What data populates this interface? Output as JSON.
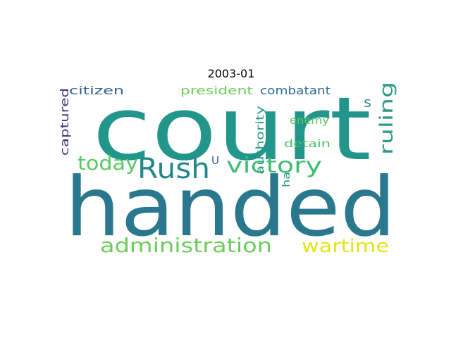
{
  "chart_data": {
    "type": "wordcloud",
    "title": "2003-01",
    "words": [
      {
        "text": "court",
        "weight": 100,
        "color": "#22968b",
        "orientation": "horizontal"
      },
      {
        "text": "handed",
        "weight": 95,
        "color": "#2a788e",
        "orientation": "horizontal"
      },
      {
        "text": "Rush",
        "weight": 40,
        "color": "#23868d",
        "orientation": "horizontal"
      },
      {
        "text": "victory",
        "weight": 30,
        "color": "#3fbc73",
        "orientation": "horizontal"
      },
      {
        "text": "today",
        "weight": 28,
        "color": "#5ac864",
        "orientation": "horizontal"
      },
      {
        "text": "administration",
        "weight": 28,
        "color": "#6ccd5a",
        "orientation": "horizontal"
      },
      {
        "text": "wartime",
        "weight": 26,
        "color": "#e2e418",
        "orientation": "horizontal"
      },
      {
        "text": "ruling",
        "weight": 25,
        "color": "#2c9a86",
        "orientation": "vertical"
      },
      {
        "text": "captured",
        "weight": 16,
        "color": "#453781",
        "orientation": "vertical"
      },
      {
        "text": "citizen",
        "weight": 16,
        "color": "#33638d",
        "orientation": "horizontal"
      },
      {
        "text": "president",
        "weight": 16,
        "color": "#6ccd5a",
        "orientation": "horizontal"
      },
      {
        "text": "combatant",
        "weight": 16,
        "color": "#2f6c8e",
        "orientation": "horizontal"
      },
      {
        "text": "authority",
        "weight": 14,
        "color": "#2a9a87",
        "orientation": "vertical"
      },
      {
        "text": "enemy",
        "weight": 14,
        "color": "#5ac864",
        "orientation": "horizontal"
      },
      {
        "text": "detain",
        "weight": 14,
        "color": "#4cc26c",
        "orientation": "horizontal"
      },
      {
        "text": "ha",
        "weight": 13,
        "color": "#2a9a87",
        "orientation": "vertical"
      },
      {
        "text": "U",
        "weight": 14,
        "color": "#3b528b",
        "orientation": "horizontal"
      },
      {
        "text": "S",
        "weight": 14,
        "color": "#26828e",
        "orientation": "horizontal"
      }
    ]
  }
}
